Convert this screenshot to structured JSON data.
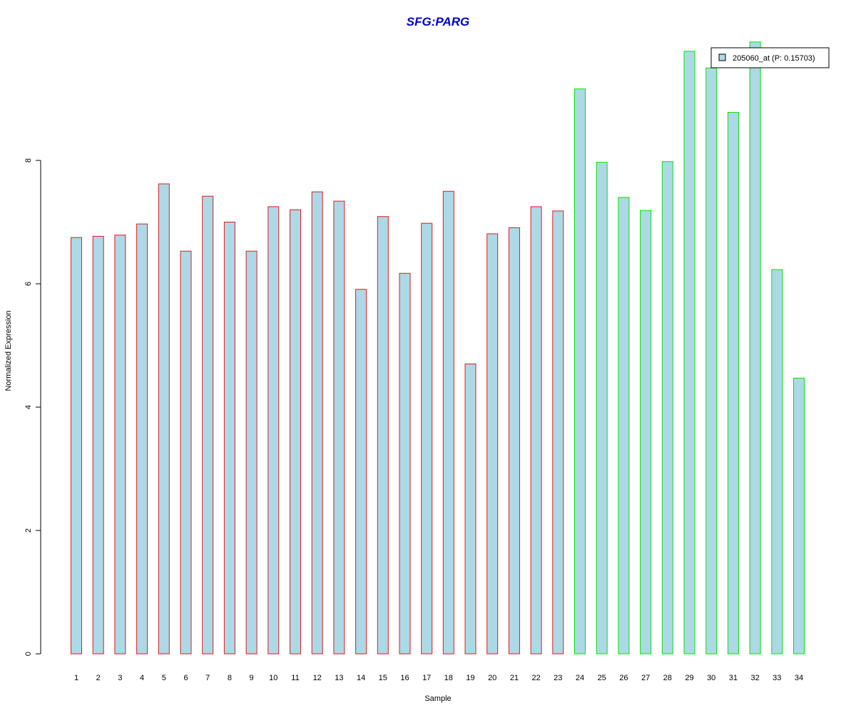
{
  "colors": {
    "bar_fill": "#add8e6",
    "group1_border": "#e41a1c",
    "group2_border": "#00e600",
    "title": "#0000cc",
    "axis": "#000000"
  },
  "chart_data": {
    "type": "bar",
    "title": "SFG:PARG",
    "xlabel": "Sample",
    "ylabel": "Normalized Expression",
    "ylim": [
      0,
      10
    ],
    "yticks": [
      0,
      2,
      4,
      6,
      8
    ],
    "grid": false,
    "legend": {
      "label": "205060_at (P: 0.15703)",
      "placement": "top-right"
    },
    "categories": [
      "1",
      "2",
      "3",
      "4",
      "5",
      "6",
      "7",
      "8",
      "9",
      "10",
      "11",
      "12",
      "13",
      "14",
      "15",
      "16",
      "17",
      "18",
      "19",
      "20",
      "21",
      "22",
      "23",
      "24",
      "25",
      "26",
      "27",
      "28",
      "29",
      "30",
      "31",
      "32",
      "33",
      "34"
    ],
    "values": [
      6.75,
      6.77,
      6.79,
      6.97,
      7.62,
      6.53,
      7.42,
      7.0,
      6.53,
      7.25,
      7.2,
      7.49,
      7.34,
      5.91,
      7.09,
      6.17,
      6.98,
      7.5,
      4.7,
      6.81,
      6.91,
      7.25,
      7.18,
      9.16,
      7.97,
      7.4,
      7.19,
      7.98,
      9.77,
      9.5,
      8.78,
      9.92,
      6.23,
      4.47
    ],
    "groups": [
      "red",
      "red",
      "red",
      "red",
      "red",
      "red",
      "red",
      "red",
      "red",
      "red",
      "red",
      "red",
      "red",
      "red",
      "red",
      "red",
      "red",
      "red",
      "red",
      "red",
      "red",
      "red",
      "red",
      "green",
      "green",
      "green",
      "green",
      "green",
      "green",
      "green",
      "green",
      "green",
      "green",
      "green"
    ]
  }
}
